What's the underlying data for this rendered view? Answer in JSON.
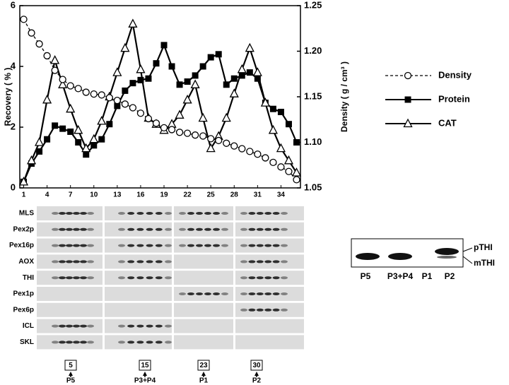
{
  "chart_data": {
    "type": "line",
    "x": [
      1,
      2,
      3,
      4,
      5,
      6,
      7,
      8,
      9,
      10,
      11,
      12,
      13,
      14,
      15,
      16,
      17,
      18,
      19,
      20,
      21,
      22,
      23,
      24,
      25,
      26,
      27,
      28,
      29,
      30,
      31,
      32,
      33,
      34,
      35,
      36
    ],
    "xlim": [
      0.5,
      36.5
    ],
    "xticks": [
      1,
      4,
      7,
      10,
      13,
      16,
      19,
      22,
      25,
      28,
      31,
      34
    ],
    "ylim": [
      0,
      6
    ],
    "yticks": [
      0,
      2,
      4,
      6
    ],
    "y2lim": [
      1.05,
      1.25
    ],
    "y2ticks": [
      1.05,
      {
        "value": 1.1,
        "label": "1.10"
      },
      1.15,
      {
        "value": 1.2,
        "label": "1.20"
      },
      1.25
    ],
    "y_label": "Recovery ( % )",
    "y2_label": "Density ( g / cm³ )",
    "legend": "right",
    "series": [
      {
        "name": "Density",
        "color": "#000000",
        "marker": "circle",
        "dashed": true,
        "axis": "y2",
        "values": [
          1.235,
          1.22,
          1.208,
          1.195,
          1.179,
          1.169,
          1.162,
          1.159,
          1.155,
          1.153,
          1.152,
          1.149,
          1.146,
          1.142,
          1.138,
          1.132,
          1.126,
          1.121,
          1.116,
          1.114,
          1.111,
          1.11,
          1.108,
          1.107,
          1.104,
          1.102,
          1.099,
          1.096,
          1.093,
          1.09,
          1.087,
          1.083,
          1.078,
          1.073,
          1.068,
          1.059
        ]
      },
      {
        "name": "Protein",
        "color": "#000000",
        "marker": "square",
        "dashed": false,
        "values": [
          0.2,
          0.8,
          1.2,
          1.6,
          2.05,
          1.95,
          1.85,
          1.5,
          1.1,
          1.4,
          1.6,
          2.1,
          2.7,
          3.2,
          3.45,
          3.55,
          3.6,
          4.1,
          4.7,
          4.0,
          3.4,
          3.5,
          3.7,
          4.0,
          4.3,
          4.4,
          3.4,
          3.6,
          3.7,
          3.8,
          3.6,
          2.8,
          2.6,
          2.5,
          2.1,
          1.5
        ]
      },
      {
        "name": "CAT",
        "color": "#000000",
        "marker": "triangle",
        "dashed": false,
        "values": [
          0.2,
          0.9,
          1.5,
          2.9,
          4.2,
          3.4,
          2.6,
          1.9,
          1.3,
          1.6,
          2.2,
          3.0,
          3.8,
          4.6,
          5.4,
          3.9,
          2.3,
          2.1,
          1.9,
          2.1,
          2.4,
          2.9,
          3.4,
          2.3,
          1.3,
          1.7,
          2.3,
          3.1,
          3.9,
          4.6,
          3.8,
          2.8,
          1.9,
          1.3,
          0.9,
          0.5
        ]
      }
    ]
  },
  "blots": {
    "rows": [
      "MLS",
      "Pex2p",
      "Pex16p",
      "AOX",
      "THI",
      "Pex1p",
      "Pex6p",
      "ICL",
      "SKL"
    ],
    "lanes": [
      {
        "fraction": "5",
        "label": "P5"
      },
      {
        "fraction": "15",
        "label": "P3+P4"
      },
      {
        "fraction": "23",
        "label": "P1"
      },
      {
        "fraction": "30",
        "label": "P2"
      }
    ]
  },
  "thi_blot": {
    "lanes": [
      "P5",
      "P3+P4",
      "P1",
      "P2"
    ],
    "bands": [
      "pTHI",
      "mTHI"
    ]
  }
}
